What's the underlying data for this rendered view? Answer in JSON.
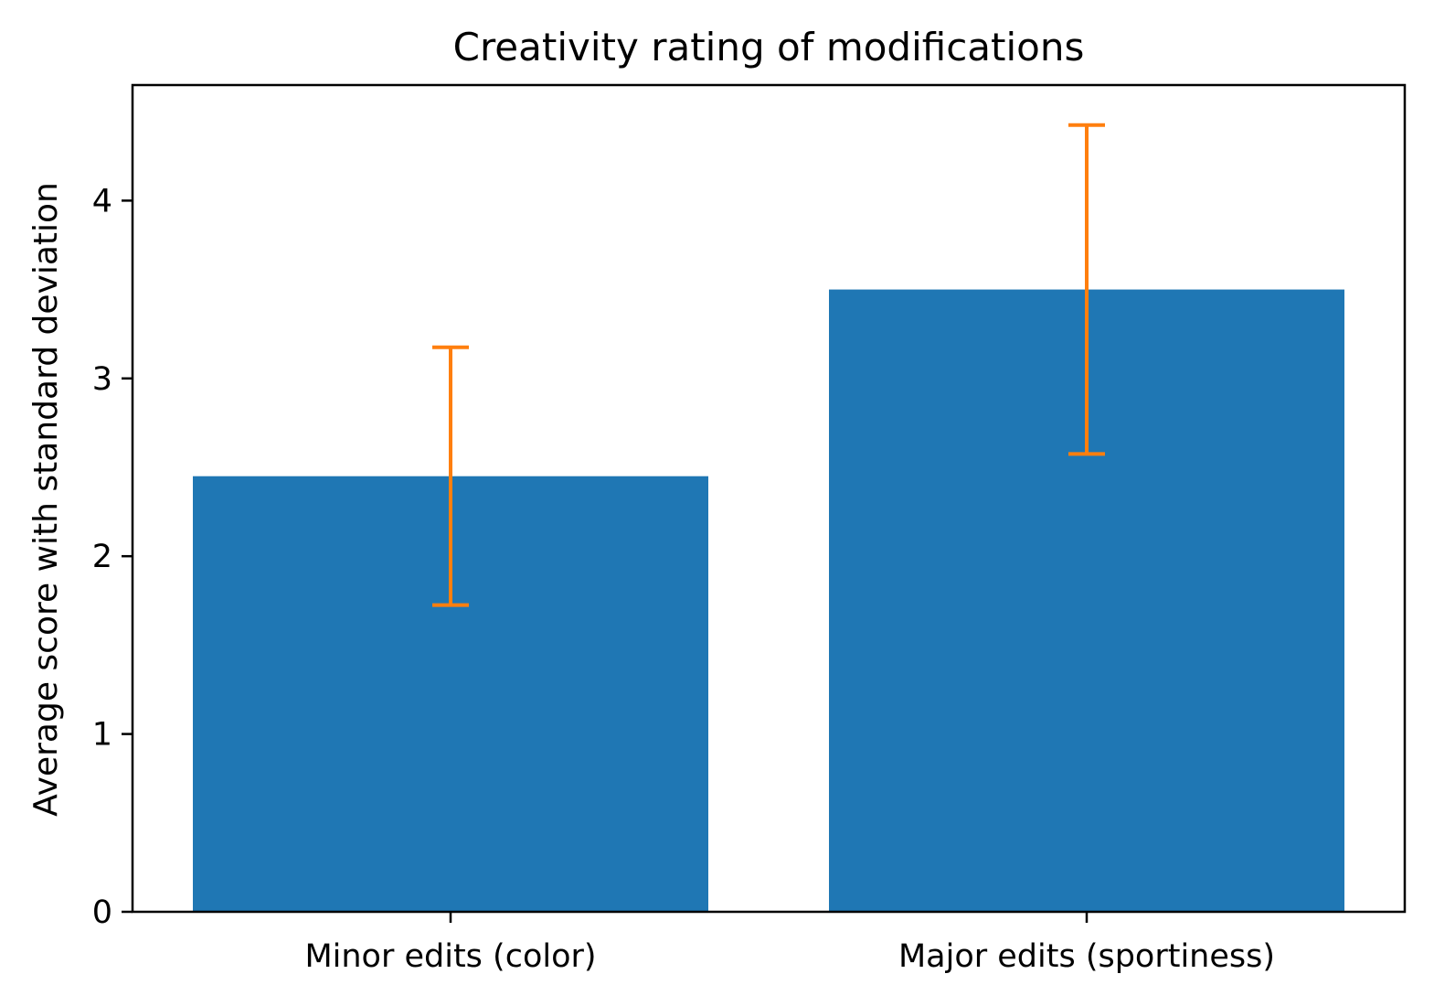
{
  "chart_data": {
    "type": "bar",
    "title": "Creativity rating of modifications",
    "xlabel": "",
    "ylabel": "Average score with standard deviation",
    "categories": [
      "Minor edits (color)",
      "Major edits (sportiness)"
    ],
    "values": [
      2.45,
      3.5
    ],
    "errors": [
      0.725,
      0.925
    ],
    "ylim": [
      0,
      4.65
    ],
    "yticks": [
      "0",
      "1",
      "2",
      "3",
      "4"
    ],
    "grid": false,
    "colors": {
      "bar": "#1f77b4",
      "error": "#ff7f0e",
      "axis": "#000000"
    }
  }
}
